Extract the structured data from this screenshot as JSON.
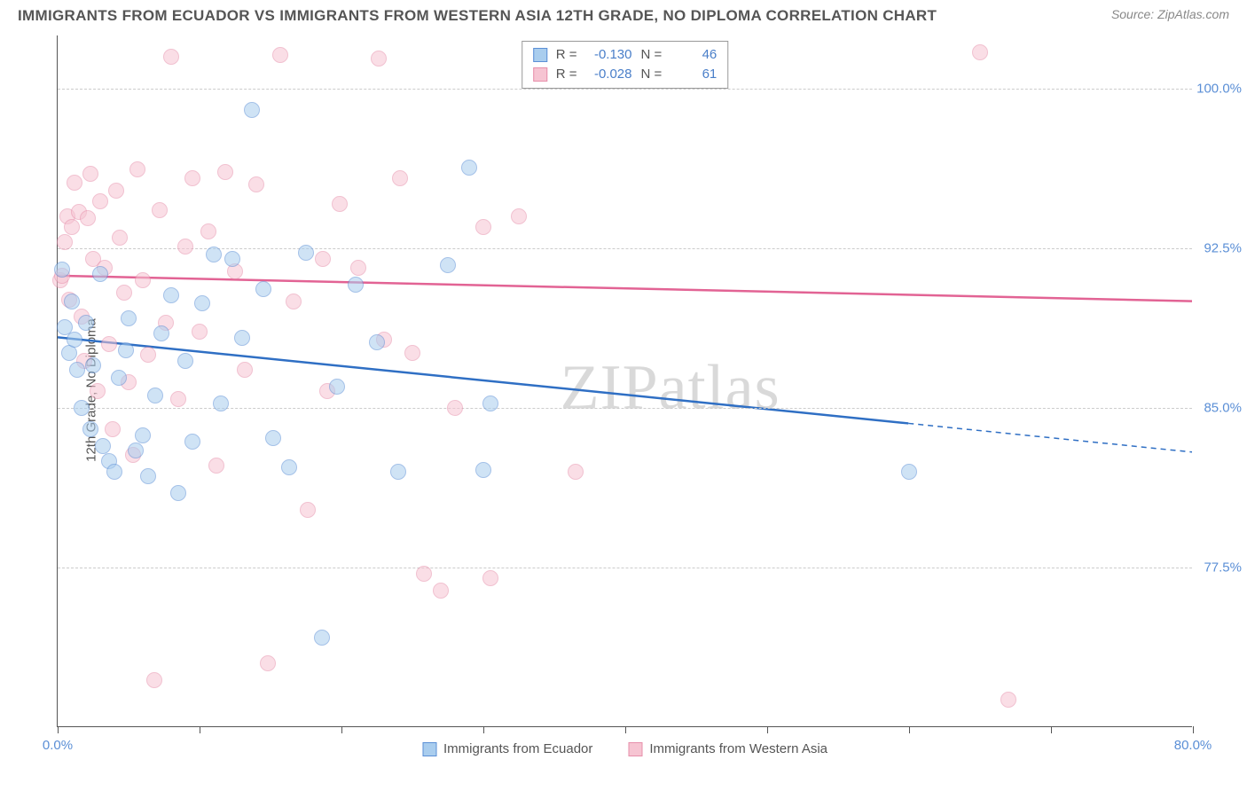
{
  "header": {
    "title": "IMMIGRANTS FROM ECUADOR VS IMMIGRANTS FROM WESTERN ASIA 12TH GRADE, NO DIPLOMA CORRELATION CHART",
    "source": "Source: ZipAtlas.com"
  },
  "watermark": {
    "a": "ZIP",
    "b": "atlas"
  },
  "chart": {
    "type": "scatter",
    "ylabel": "12th Grade, No Diploma",
    "background_color": "#ffffff",
    "grid_color": "#cccccc",
    "axis_color": "#555555",
    "label_color": "#555555",
    "tick_color": "#5b8fd6",
    "title_fontsize": 17,
    "label_fontsize": 15,
    "tick_fontsize": 15,
    "xlim": [
      0,
      80
    ],
    "ylim": [
      70,
      102.5
    ],
    "yticks": [
      77.5,
      85.0,
      92.5,
      100.0
    ],
    "ytick_labels": [
      "77.5%",
      "85.0%",
      "92.5%",
      "100.0%"
    ],
    "xticks": [
      0,
      10,
      20,
      30,
      40,
      50,
      60,
      70,
      80
    ],
    "xtick_labels": {
      "0": "0.0%",
      "80": "80.0%"
    },
    "marker_radius": 9,
    "marker_opacity": 0.55,
    "line_width": 2.5,
    "series": [
      {
        "key": "ecuador",
        "label": "Immigrants from Ecuador",
        "color_fill": "#a9cdee",
        "color_stroke": "#5b8fd6",
        "line_color": "#2f6fc4",
        "R": "-0.130",
        "N": "46",
        "trend": {
          "x1": 0,
          "y1": 88.3,
          "x2": 80,
          "y2": 82.9,
          "solid_until_x": 60
        },
        "points": [
          [
            0.3,
            91.5
          ],
          [
            0.5,
            88.8
          ],
          [
            0.8,
            87.6
          ],
          [
            1.0,
            90.0
          ],
          [
            1.2,
            88.2
          ],
          [
            1.4,
            86.8
          ],
          [
            1.7,
            85.0
          ],
          [
            2.0,
            89.0
          ],
          [
            2.3,
            84.0
          ],
          [
            2.5,
            87.0
          ],
          [
            3.0,
            91.3
          ],
          [
            3.2,
            83.2
          ],
          [
            3.6,
            82.5
          ],
          [
            4.0,
            82.0
          ],
          [
            4.3,
            86.4
          ],
          [
            4.8,
            87.7
          ],
          [
            5.0,
            89.2
          ],
          [
            5.5,
            83.0
          ],
          [
            6.0,
            83.7
          ],
          [
            6.4,
            81.8
          ],
          [
            6.9,
            85.6
          ],
          [
            7.3,
            88.5
          ],
          [
            8.0,
            90.3
          ],
          [
            8.5,
            81.0
          ],
          [
            9.0,
            87.2
          ],
          [
            9.5,
            83.4
          ],
          [
            10.2,
            89.9
          ],
          [
            11.0,
            92.2
          ],
          [
            11.5,
            85.2
          ],
          [
            12.3,
            92.0
          ],
          [
            13.0,
            88.3
          ],
          [
            13.7,
            99.0
          ],
          [
            14.5,
            90.6
          ],
          [
            15.2,
            83.6
          ],
          [
            16.3,
            82.2
          ],
          [
            17.5,
            92.3
          ],
          [
            18.6,
            74.2
          ],
          [
            19.7,
            86.0
          ],
          [
            21.0,
            90.8
          ],
          [
            22.5,
            88.1
          ],
          [
            24.0,
            82.0
          ],
          [
            27.5,
            91.7
          ],
          [
            29.0,
            96.3
          ],
          [
            30.0,
            82.1
          ],
          [
            30.5,
            85.2
          ],
          [
            60.0,
            82.0
          ]
        ]
      },
      {
        "key": "wasia",
        "label": "Immigrants from Western Asia",
        "color_fill": "#f6c4d2",
        "color_stroke": "#e78fab",
        "line_color": "#e26394",
        "R": "-0.028",
        "N": "61",
        "trend": {
          "x1": 0,
          "y1": 91.2,
          "x2": 80,
          "y2": 90.0,
          "solid_until_x": 80
        },
        "points": [
          [
            0.2,
            91.0
          ],
          [
            0.3,
            91.2
          ],
          [
            0.5,
            92.8
          ],
          [
            0.7,
            94.0
          ],
          [
            0.8,
            90.1
          ],
          [
            1.0,
            93.5
          ],
          [
            1.2,
            95.6
          ],
          [
            1.5,
            94.2
          ],
          [
            1.7,
            89.3
          ],
          [
            1.9,
            87.2
          ],
          [
            2.1,
            93.9
          ],
          [
            2.3,
            96.0
          ],
          [
            2.5,
            92.0
          ],
          [
            2.8,
            85.8
          ],
          [
            3.0,
            94.7
          ],
          [
            3.3,
            91.6
          ],
          [
            3.6,
            88.0
          ],
          [
            3.9,
            84.0
          ],
          [
            4.1,
            95.2
          ],
          [
            4.4,
            93.0
          ],
          [
            4.7,
            90.4
          ],
          [
            5.0,
            86.2
          ],
          [
            5.3,
            82.8
          ],
          [
            5.6,
            96.2
          ],
          [
            6.0,
            91.0
          ],
          [
            6.4,
            87.5
          ],
          [
            6.8,
            72.2
          ],
          [
            7.2,
            94.3
          ],
          [
            7.6,
            89.0
          ],
          [
            8.0,
            101.5
          ],
          [
            8.5,
            85.4
          ],
          [
            9.0,
            92.6
          ],
          [
            9.5,
            95.8
          ],
          [
            10.0,
            88.6
          ],
          [
            10.6,
            93.3
          ],
          [
            11.2,
            82.3
          ],
          [
            11.8,
            96.1
          ],
          [
            12.5,
            91.4
          ],
          [
            13.2,
            86.8
          ],
          [
            14.0,
            95.5
          ],
          [
            14.8,
            73.0
          ],
          [
            15.7,
            101.6
          ],
          [
            16.6,
            90.0
          ],
          [
            17.6,
            80.2
          ],
          [
            18.7,
            92.0
          ],
          [
            19.0,
            85.8
          ],
          [
            19.9,
            94.6
          ],
          [
            21.2,
            91.6
          ],
          [
            22.6,
            101.4
          ],
          [
            23.0,
            88.2
          ],
          [
            24.1,
            95.8
          ],
          [
            25.0,
            87.6
          ],
          [
            25.8,
            77.2
          ],
          [
            27.0,
            76.4
          ],
          [
            28.0,
            85.0
          ],
          [
            30.0,
            93.5
          ],
          [
            30.5,
            77.0
          ],
          [
            32.5,
            94.0
          ],
          [
            36.5,
            82.0
          ],
          [
            65.0,
            101.7
          ],
          [
            67.0,
            71.3
          ]
        ]
      }
    ]
  }
}
